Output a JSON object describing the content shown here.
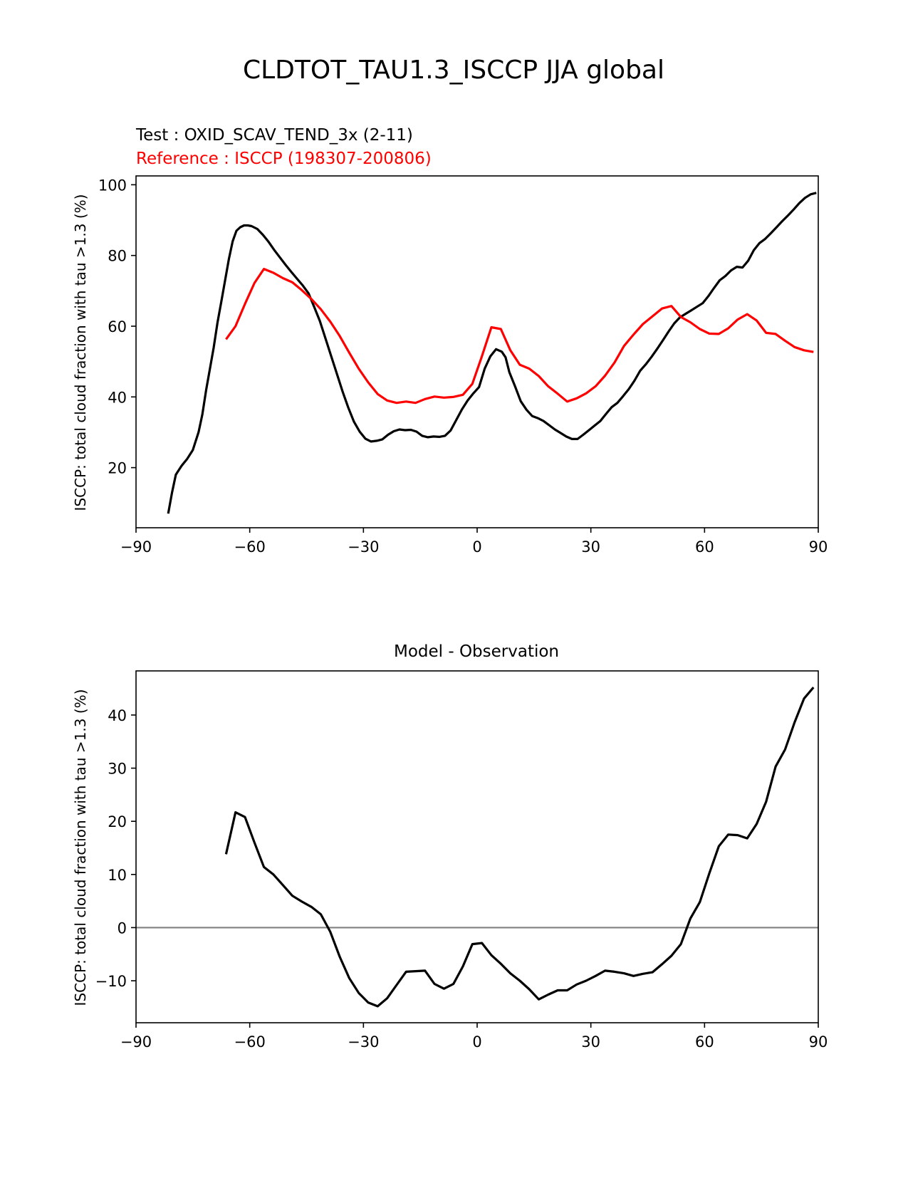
{
  "suptitle": "CLDTOT_TAU1.3_ISCCP JJA global",
  "colors": {
    "test": "#000000",
    "reference": "#ff0000",
    "zero_line": "#808080",
    "axes": "#000000"
  },
  "chart_data": [
    {
      "type": "line",
      "title_left_test": "Test : OXID_SCAV_TEND_3x (2-11)",
      "title_left_reference": "Reference : ISCCP (198307-200806)",
      "xlabel": "",
      "ylabel": "ISCCP: total cloud fraction with tau >1.3 (%)",
      "xlim": [
        -90,
        90
      ],
      "ylim": [
        3,
        102.5
      ],
      "xticks": [
        -90,
        -60,
        -30,
        0,
        30,
        60,
        90
      ],
      "xtick_labels": [
        "−90",
        "−60",
        "−30",
        "0",
        "30",
        "60",
        "90"
      ],
      "yticks": [
        20,
        40,
        60,
        80,
        100
      ],
      "ytick_labels": [
        "20",
        "40",
        "60",
        "80",
        "100"
      ],
      "series": [
        {
          "name": "Test",
          "color": "#000000",
          "x": [
            -81.5,
            -80.5,
            -79.5,
            -78,
            -76.5,
            -75,
            -73.5,
            -72.5,
            -71.5,
            -70.5,
            -69.5,
            -68.5,
            -67.5,
            -66.5,
            -65.5,
            -64.5,
            -63.5,
            -62.5,
            -61.5,
            -60.5,
            -59.5,
            -58,
            -56.5,
            -55,
            -53.5,
            -52,
            -50.5,
            -49,
            -47.5,
            -46,
            -44.5,
            -43,
            -41.5,
            -40,
            -38.5,
            -37,
            -35.5,
            -34,
            -32.5,
            -31,
            -29.5,
            -28,
            -26.5,
            -25,
            -23.5,
            -22,
            -20.5,
            -19,
            -17.5,
            -16,
            -14.5,
            -13,
            -11.5,
            -10,
            -8.5,
            -7,
            -5.5,
            -4,
            -2.5,
            -1,
            0.5,
            2,
            3.5,
            5,
            6.5,
            7.5,
            8.5,
            10,
            11.5,
            13,
            14.5,
            16,
            17.5,
            19,
            20.5,
            22,
            23.5,
            25,
            26.5,
            28,
            29.5,
            31,
            32.5,
            34,
            35.5,
            37,
            38.5,
            40,
            41.5,
            43,
            44.5,
            46,
            47.5,
            49,
            50.5,
            52,
            53.5,
            55,
            56.5,
            58,
            59.5,
            61,
            62.5,
            64,
            65.5,
            67,
            68.5,
            70,
            71.5,
            73,
            74.5,
            76,
            77.5,
            79,
            80.5,
            82,
            83.5,
            85,
            86.5,
            88,
            89.5
          ],
          "y": [
            7,
            13,
            18,
            20.5,
            22.5,
            25,
            30,
            35,
            42,
            48,
            54,
            61,
            67,
            73,
            79,
            84,
            87,
            88,
            88.5,
            88.5,
            88.3,
            87.5,
            85.8,
            83.8,
            81.5,
            79.4,
            77.3,
            75.3,
            73.4,
            71.5,
            69.3,
            65.5,
            61.5,
            56.5,
            51.5,
            46.5,
            41.5,
            37,
            33,
            30.2,
            28.2,
            27.4,
            27.6,
            28,
            29.3,
            30.3,
            30.8,
            30.6,
            30.7,
            30.2,
            29,
            28.6,
            28.8,
            28.7,
            29,
            30.5,
            33.5,
            36.5,
            39,
            41,
            42.8,
            48,
            51.5,
            53.5,
            52.8,
            51.2,
            47,
            43,
            38.8,
            36.4,
            34.6,
            34,
            33.2,
            32,
            30.8,
            29.8,
            28.8,
            28.1,
            28.1,
            29.3,
            30.6,
            31.9,
            33.2,
            35.2,
            37.1,
            38.3,
            40.2,
            42.2,
            44.6,
            47.4,
            49.2,
            51.3,
            53.6,
            56,
            58.5,
            60.8,
            62.5,
            63.5,
            64.5,
            65.5,
            66.5,
            68.5,
            70.8,
            73,
            74.2,
            75.8,
            76.8,
            76.6,
            78.5,
            81.5,
            83.5,
            84.7,
            86.3,
            88,
            89.7,
            91.3,
            93,
            94.8,
            96.3,
            97.3,
            97.7
          ]
        },
        {
          "name": "Reference",
          "color": "#ff0000",
          "x": [
            -66.25,
            -63.75,
            -61.25,
            -58.75,
            -56.25,
            -53.75,
            -51.25,
            -48.75,
            -46.25,
            -43.75,
            -41.25,
            -38.75,
            -36.25,
            -33.75,
            -31.25,
            -28.75,
            -26.25,
            -23.75,
            -21.25,
            -18.75,
            -16.25,
            -13.75,
            -11.25,
            -8.75,
            -6.25,
            -3.75,
            -1.25,
            1.25,
            3.75,
            6.25,
            8.75,
            11.25,
            13.75,
            16.25,
            18.75,
            21.25,
            23.75,
            26.25,
            28.75,
            31.25,
            33.75,
            36.25,
            38.75,
            41.25,
            43.75,
            46.25,
            48.75,
            51.25,
            53.75,
            56.25,
            58.75,
            61.25,
            63.75,
            66.25,
            68.75,
            71.25,
            73.75,
            76.25,
            78.75,
            81.25,
            83.75,
            86.25,
            88.75
          ],
          "y": [
            56.3,
            60,
            66.3,
            72.2,
            76.2,
            75.1,
            73.6,
            72.4,
            70.2,
            67.7,
            64.8,
            61.3,
            57.2,
            52.5,
            48,
            44.1,
            40.8,
            39,
            38.3,
            38.7,
            38.3,
            39.4,
            40.1,
            39.8,
            40,
            40.6,
            43.7,
            51.5,
            59.7,
            59.2,
            53.2,
            49.1,
            48,
            45.9,
            43,
            40.9,
            38.7,
            39.6,
            41,
            43,
            46,
            49.7,
            54.4,
            57.6,
            60.6,
            62.8,
            65,
            65.7,
            62.6,
            61.1,
            59.2,
            57.9,
            57.8,
            59.4,
            61.9,
            63.4,
            61.6,
            58.1,
            57.8,
            55.9,
            54.1,
            53.2,
            52.7
          ]
        }
      ]
    },
    {
      "type": "line",
      "title": "Model - Observation",
      "xlabel": "",
      "ylabel": "ISCCP: total cloud fraction with tau >1.3 (%)",
      "xlim": [
        -90,
        90
      ],
      "ylim": [
        -17.9,
        48.3
      ],
      "xticks": [
        -90,
        -60,
        -30,
        0,
        30,
        60,
        90
      ],
      "xtick_labels": [
        "−90",
        "−60",
        "−30",
        "0",
        "30",
        "60",
        "90"
      ],
      "yticks": [
        -10,
        0,
        10,
        20,
        30,
        40
      ],
      "ytick_labels": [
        "−10",
        "0",
        "10",
        "20",
        "30",
        "40"
      ],
      "hline": 0,
      "series": [
        {
          "name": "Model - Observation",
          "color": "#000000",
          "x": [
            -66.25,
            -63.75,
            -61.25,
            -58.75,
            -56.25,
            -53.75,
            -51.25,
            -48.75,
            -46.25,
            -43.75,
            -41.25,
            -38.75,
            -36.25,
            -33.75,
            -31.25,
            -28.75,
            -26.25,
            -23.75,
            -21.25,
            -18.75,
            -16.25,
            -13.75,
            -11.25,
            -8.75,
            -6.25,
            -3.75,
            -1.25,
            1.25,
            3.75,
            6.25,
            8.75,
            11.25,
            13.75,
            16.25,
            18.75,
            21.25,
            23.75,
            26.25,
            28.75,
            31.25,
            33.75,
            36.25,
            38.75,
            41.25,
            43.75,
            46.25,
            48.75,
            51.25,
            53.75,
            56.25,
            58.75,
            61.25,
            63.75,
            66.25,
            68.75,
            71.25,
            73.75,
            76.25,
            78.75,
            81.25,
            83.75,
            86.25,
            88.75
          ],
          "y": [
            13.8,
            21.7,
            20.8,
            16,
            11.4,
            10,
            8,
            6,
            4.9,
            3.9,
            2.5,
            -0.8,
            -5.5,
            -9.5,
            -12.3,
            -14.1,
            -14.8,
            -13.3,
            -10.8,
            -8.3,
            -8.2,
            -8.1,
            -10.6,
            -11.5,
            -10.6,
            -7.3,
            -3.1,
            -2.9,
            -5.2,
            -6.8,
            -8.6,
            -10,
            -11.6,
            -13.5,
            -12.6,
            -11.8,
            -11.8,
            -10.7,
            -10,
            -9.1,
            -8.1,
            -8.3,
            -8.6,
            -9.1,
            -8.7,
            -8.4,
            -6.9,
            -5.3,
            -3.1,
            1.7,
            4.8,
            10.2,
            15.3,
            17.5,
            17.4,
            16.8,
            19.5,
            23.7,
            30.3,
            33.5,
            38.6,
            43.1,
            45.2
          ]
        }
      ]
    }
  ]
}
